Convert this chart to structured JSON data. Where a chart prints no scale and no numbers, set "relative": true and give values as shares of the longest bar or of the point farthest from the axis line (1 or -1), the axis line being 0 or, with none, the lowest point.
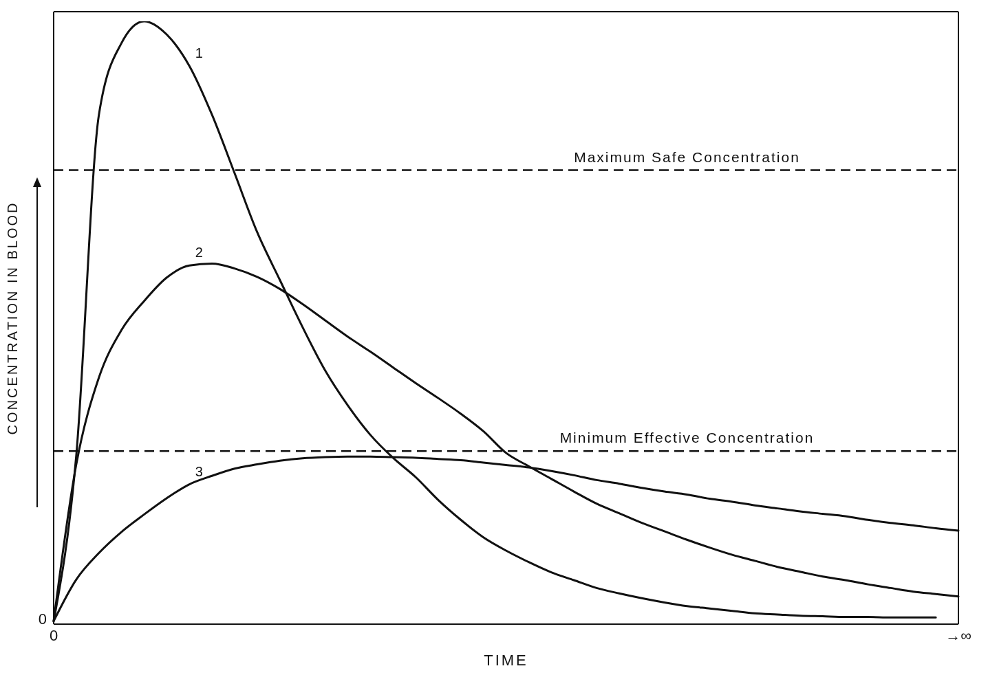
{
  "chart_data": {
    "type": "line",
    "relative": true,
    "xlabel": "TIME",
    "ylabel": "CONCENTRATION IN BLOOD",
    "categories": [
      "0",
      null,
      null,
      null,
      null,
      null,
      null,
      null,
      null,
      null,
      null,
      null,
      null,
      null,
      null,
      null,
      null,
      null,
      null,
      null,
      null,
      null,
      null,
      null,
      null,
      null,
      null,
      null,
      null,
      null,
      null,
      null,
      null,
      null,
      null,
      null,
      null,
      null,
      null,
      null,
      "→∞"
    ],
    "legend": false,
    "marker": "none",
    "line_style": "solid",
    "annotations": [
      {
        "text": "0",
        "x": "0",
        "y": 0
      }
    ],
    "ref_lines": [
      {
        "axis": "y",
        "value": 0.753,
        "label": "Maximum Safe Concentration",
        "color": "#111111",
        "line_style": "dashed"
      },
      {
        "axis": "y",
        "value": 0.287,
        "label": "Minimum Effective Concentration",
        "color": "#111111",
        "line_style": "dashed"
      }
    ],
    "series": [
      {
        "name": "1",
        "color": "#111111",
        "values": [
          0.005,
          0.28,
          0.845,
          0.964,
          1.0,
          0.978,
          0.926,
          0.845,
          0.748,
          0.65,
          0.571,
          0.493,
          0.421,
          0.363,
          0.314,
          0.276,
          0.244,
          0.206,
          0.173,
          0.144,
          0.122,
          0.103,
          0.086,
          0.073,
          0.06,
          0.051,
          0.043,
          0.036,
          0.03,
          0.026,
          0.022,
          0.018,
          0.016,
          0.014,
          0.013,
          0.012,
          0.012,
          0.011,
          0.011,
          0.011,
          null
        ]
      },
      {
        "name": "2",
        "color": "#111111",
        "values": [
          0.005,
          0.265,
          0.409,
          0.488,
          0.536,
          0.575,
          0.595,
          0.598,
          0.59,
          0.576,
          0.556,
          0.531,
          0.504,
          0.477,
          0.452,
          0.426,
          0.4,
          0.375,
          0.349,
          0.32,
          0.284,
          0.262,
          0.241,
          0.22,
          0.2,
          0.184,
          0.168,
          0.154,
          0.14,
          0.127,
          0.115,
          0.105,
          0.095,
          0.087,
          0.079,
          0.073,
          0.066,
          0.06,
          0.054,
          0.05,
          0.046
        ]
      },
      {
        "name": "3",
        "color": "#111111",
        "values": [
          0.005,
          0.074,
          0.118,
          0.153,
          0.182,
          0.209,
          0.232,
          0.246,
          0.258,
          0.265,
          0.271,
          0.275,
          0.277,
          0.278,
          0.278,
          0.277,
          0.276,
          0.274,
          0.272,
          0.268,
          0.264,
          0.26,
          0.254,
          0.247,
          0.239,
          0.233,
          0.226,
          0.22,
          0.215,
          0.208,
          0.203,
          0.197,
          0.192,
          0.187,
          0.183,
          0.179,
          0.173,
          0.168,
          0.164,
          0.159,
          0.155
        ]
      }
    ]
  }
}
